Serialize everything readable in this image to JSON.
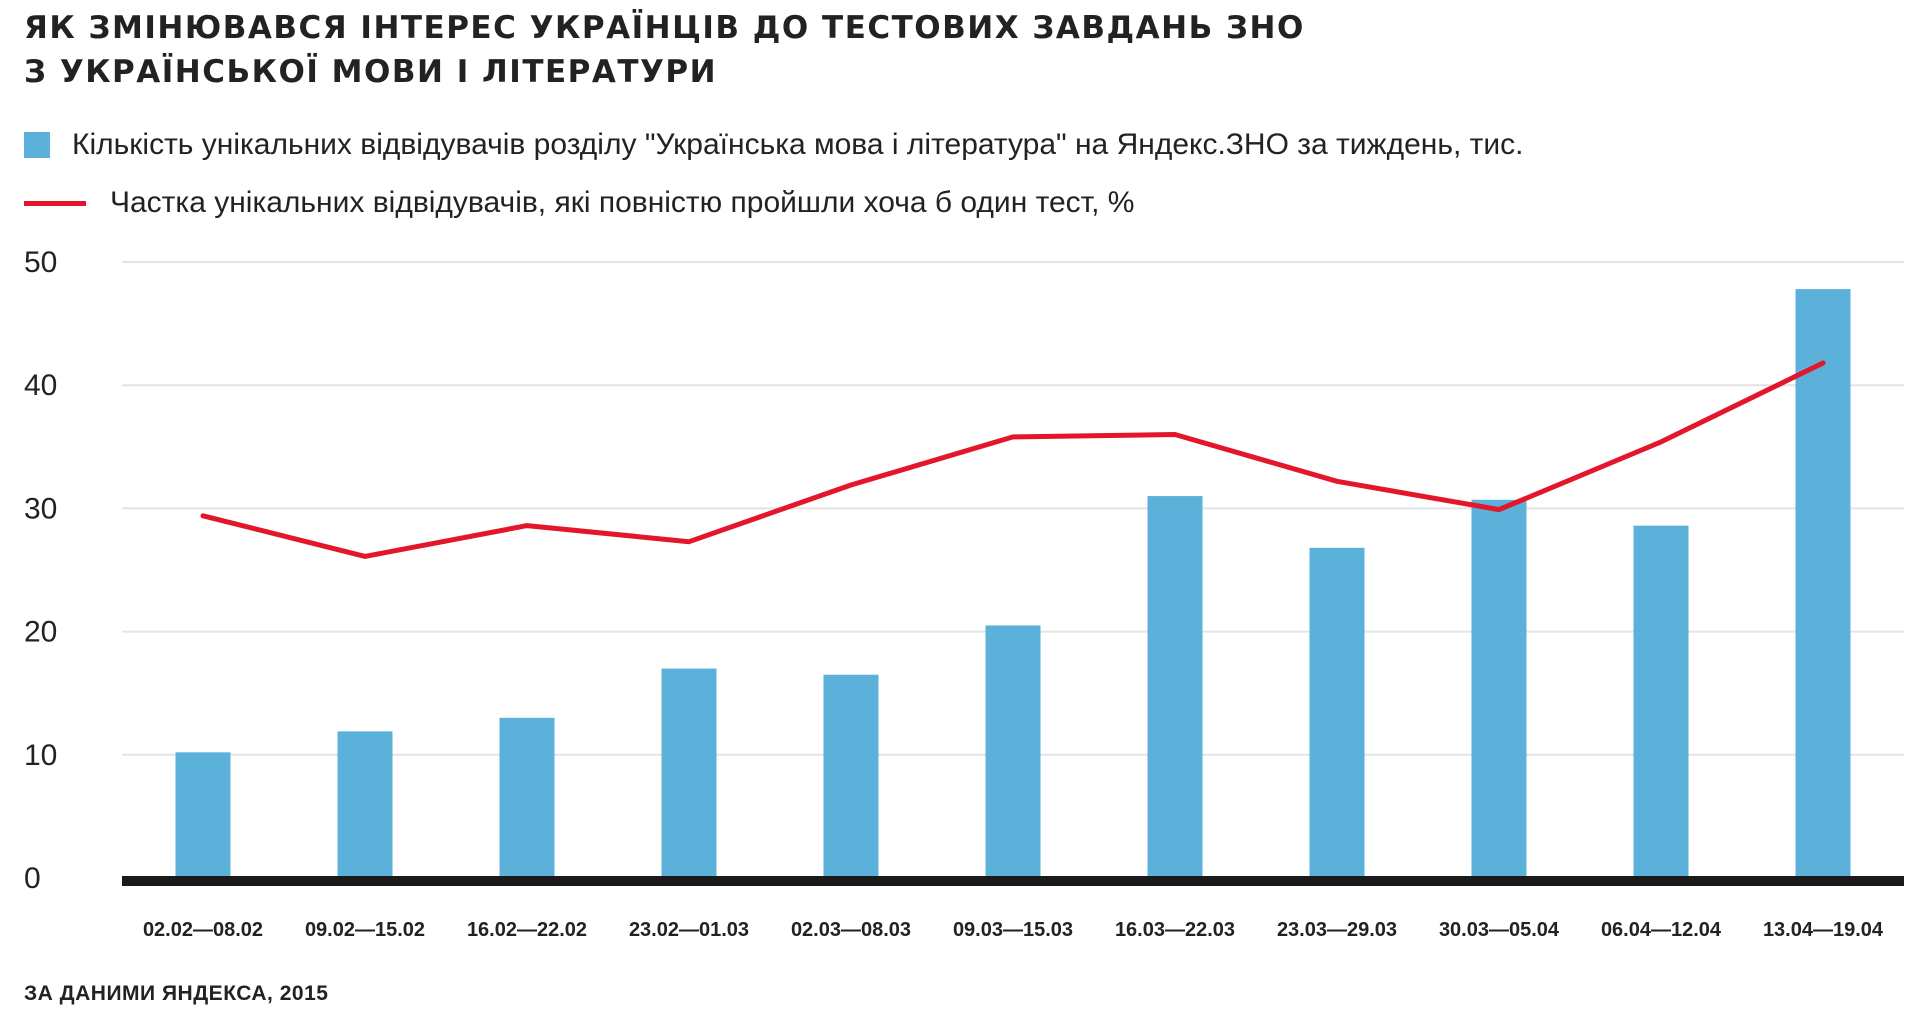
{
  "colors": {
    "bar": "#5bb1d9",
    "line": "#e3162b",
    "axis": "#1a1a1a",
    "grid": "#e4e4e4"
  },
  "chart_data": {
    "type": "bar",
    "title": [
      "ЯК ЗМІНЮВАВСЯ ІНТЕРЕС УКРАЇНЦІВ ДО ТЕСТОВИХ ЗАВДАНЬ ЗНО",
      "З УКРАЇНСЬКОЇ МОВИ І ЛІТЕРАТУРИ"
    ],
    "categories": [
      "02.02—08.02",
      "09.02—15.02",
      "16.02—22.02",
      "23.02—01.03",
      "02.03—08.03",
      "09.03—15.03",
      "16.03—22.03",
      "23.03—29.03",
      "30.03—05.04",
      "06.04—12.04",
      "13.04—19.04"
    ],
    "series": [
      {
        "name": "Кількість унікальних відвідувачів розділу \"Українська мова і література\" на Яндекс.ЗНО за тиждень, тис.",
        "type": "bar",
        "values": [
          10.2,
          11.9,
          13.0,
          17.0,
          16.5,
          20.5,
          31.0,
          26.8,
          30.7,
          28.6,
          47.8
        ]
      },
      {
        "name": "Частка унікальних відвідувачів, які повністю пройшли хоча б один тест, %",
        "type": "line",
        "values": [
          29.4,
          26.1,
          28.6,
          27.3,
          31.9,
          35.8,
          36.0,
          32.2,
          29.9,
          35.4,
          41.8
        ]
      }
    ],
    "yticks": [
      0,
      10,
      20,
      30,
      40,
      50
    ],
    "ylim": [
      0,
      50
    ],
    "grid": true,
    "legend": "top-left",
    "source": "ЗА ДАНИМИ ЯНДЕКСА, 2015"
  }
}
